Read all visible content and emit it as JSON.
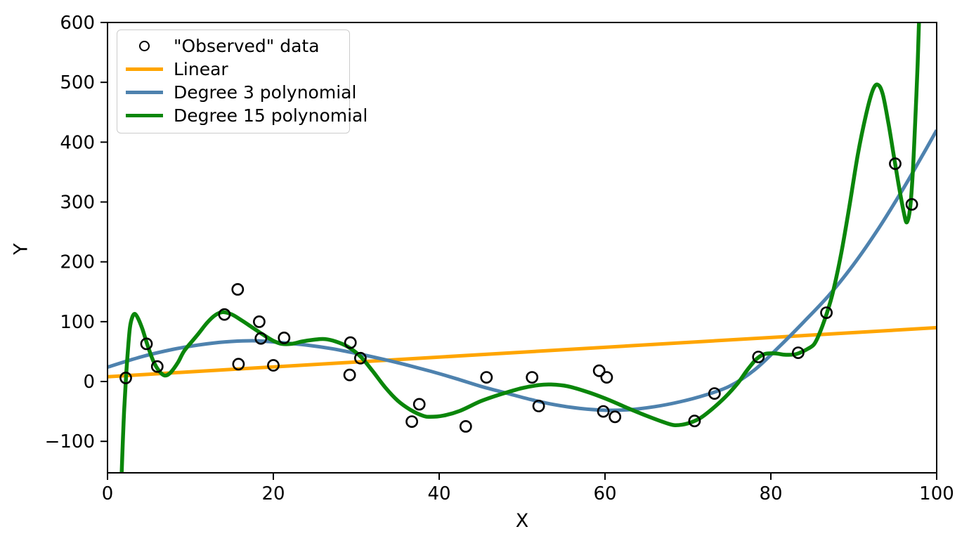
{
  "chart_data": {
    "type": "scatter+line",
    "title": "",
    "xlabel": "X",
    "ylabel": "Y",
    "xlim": [
      0,
      100
    ],
    "ylim": [
      -152.6,
      600
    ],
    "grid": false,
    "background": "#ffffff",
    "xticks": {
      "values": [
        0,
        20,
        40,
        60,
        80,
        100
      ],
      "labels": [
        "0",
        "20",
        "40",
        "60",
        "80",
        "100"
      ]
    },
    "yticks": {
      "values": [
        -100,
        0,
        100,
        200,
        300,
        400,
        500,
        600
      ],
      "labels": [
        "−100",
        "0",
        "100",
        "200",
        "300",
        "400",
        "500",
        "600"
      ]
    },
    "scatter": {
      "name": "\"Observed\" data",
      "color": "#000000",
      "marker": "open-circle",
      "points": [
        [
          2.2,
          6
        ],
        [
          4.7,
          63
        ],
        [
          6.0,
          25
        ],
        [
          14.1,
          112
        ],
        [
          15.7,
          154
        ],
        [
          15.8,
          29
        ],
        [
          18.3,
          100
        ],
        [
          18.5,
          72
        ],
        [
          20.0,
          27
        ],
        [
          21.3,
          73
        ],
        [
          29.2,
          11
        ],
        [
          29.3,
          65
        ],
        [
          30.5,
          39
        ],
        [
          36.7,
          -67
        ],
        [
          37.6,
          -38
        ],
        [
          43.2,
          -75
        ],
        [
          45.7,
          7
        ],
        [
          51.2,
          7
        ],
        [
          52.0,
          -41
        ],
        [
          59.3,
          18
        ],
        [
          59.8,
          -50
        ],
        [
          60.2,
          7
        ],
        [
          61.2,
          -59
        ],
        [
          70.8,
          -66
        ],
        [
          73.2,
          -20
        ],
        [
          78.5,
          41
        ],
        [
          83.3,
          48
        ],
        [
          86.7,
          115
        ],
        [
          95.0,
          364
        ],
        [
          97.0,
          296
        ]
      ]
    },
    "series": [
      {
        "name": "Linear",
        "color": "#FFA500",
        "points": [
          [
            0,
            8
          ],
          [
            100,
            90
          ]
        ]
      },
      {
        "name": "Degree 3 polynomial",
        "color": "#4E82AE",
        "points": [
          [
            0,
            24
          ],
          [
            4,
            41
          ],
          [
            8,
            54
          ],
          [
            12,
            63
          ],
          [
            15,
            67
          ],
          [
            18,
            68
          ],
          [
            21,
            65
          ],
          [
            24,
            61
          ],
          [
            27,
            55
          ],
          [
            30,
            47
          ],
          [
            33,
            38
          ],
          [
            36,
            28
          ],
          [
            39,
            17
          ],
          [
            42,
            5
          ],
          [
            45,
            -8
          ],
          [
            48,
            -19
          ],
          [
            51,
            -30
          ],
          [
            54,
            -39
          ],
          [
            57,
            -45
          ],
          [
            60,
            -48
          ],
          [
            63,
            -47
          ],
          [
            66,
            -42
          ],
          [
            69,
            -34
          ],
          [
            72,
            -23
          ],
          [
            75,
            -8
          ],
          [
            78,
            19
          ],
          [
            81,
            58
          ],
          [
            84,
            100
          ],
          [
            87,
            144
          ],
          [
            90,
            196
          ],
          [
            93,
            256
          ],
          [
            96,
            323
          ],
          [
            98,
            371
          ],
          [
            100,
            420
          ]
        ]
      },
      {
        "name": "Degree 15 polynomial",
        "color": "#0A860A",
        "points": [
          [
            1.7,
            -155
          ],
          [
            1.85,
            -100
          ],
          [
            2.0,
            -50
          ],
          [
            2.2,
            0
          ],
          [
            2.45,
            50
          ],
          [
            2.7,
            90
          ],
          [
            3.0,
            108
          ],
          [
            3.3,
            113
          ],
          [
            3.7,
            105
          ],
          [
            4.2,
            88
          ],
          [
            4.8,
            62
          ],
          [
            5.5,
            35
          ],
          [
            6.2,
            18
          ],
          [
            6.9,
            10
          ],
          [
            7.6,
            15
          ],
          [
            8.5,
            32
          ],
          [
            9.3,
            52
          ],
          [
            10.8,
            77
          ],
          [
            12.0,
            98
          ],
          [
            13.0,
            111
          ],
          [
            13.9,
            116
          ],
          [
            15.0,
            112
          ],
          [
            16.2,
            102
          ],
          [
            17.5,
            90
          ],
          [
            18.8,
            78
          ],
          [
            20.0,
            68
          ],
          [
            21.0,
            63
          ],
          [
            22.2,
            63
          ],
          [
            23.5,
            67
          ],
          [
            25.0,
            70
          ],
          [
            26.2,
            71
          ],
          [
            27.5,
            67
          ],
          [
            29.0,
            58
          ],
          [
            30.5,
            42
          ],
          [
            32.0,
            17
          ],
          [
            33.5,
            -10
          ],
          [
            35.0,
            -32
          ],
          [
            36.5,
            -47
          ],
          [
            38.0,
            -57
          ],
          [
            38.9,
            -59
          ],
          [
            40.5,
            -57
          ],
          [
            42.5,
            -49
          ],
          [
            45.0,
            -33
          ],
          [
            47.5,
            -21
          ],
          [
            50.0,
            -11
          ],
          [
            52.0,
            -6
          ],
          [
            53.5,
            -5
          ],
          [
            55.5,
            -8
          ],
          [
            58.0,
            -18
          ],
          [
            60.5,
            -31
          ],
          [
            63.0,
            -46
          ],
          [
            65.5,
            -60
          ],
          [
            67.5,
            -70
          ],
          [
            68.5,
            -73
          ],
          [
            70.0,
            -70
          ],
          [
            71.5,
            -61
          ],
          [
            73.0,
            -45
          ],
          [
            74.5,
            -26
          ],
          [
            76.0,
            -3
          ],
          [
            77.2,
            20
          ],
          [
            78.3,
            38
          ],
          [
            79.3,
            46
          ],
          [
            80.5,
            47
          ],
          [
            81.5,
            45
          ],
          [
            82.7,
            45
          ],
          [
            83.5,
            48
          ],
          [
            84.5,
            55
          ],
          [
            85.2,
            62
          ],
          [
            85.8,
            78
          ],
          [
            86.7,
            112
          ],
          [
            87.5,
            150
          ],
          [
            88.5,
            215
          ],
          [
            89.5,
            295
          ],
          [
            90.5,
            380
          ],
          [
            91.5,
            447
          ],
          [
            92.3,
            487
          ],
          [
            92.9,
            496
          ],
          [
            93.5,
            480
          ],
          [
            94.2,
            430
          ],
          [
            94.8,
            380
          ],
          [
            95.4,
            330
          ],
          [
            96.0,
            285
          ],
          [
            96.4,
            266
          ],
          [
            96.8,
            290
          ],
          [
            97.1,
            345
          ],
          [
            97.4,
            430
          ],
          [
            97.7,
            530
          ],
          [
            97.9,
            615
          ]
        ]
      }
    ],
    "legend": {
      "position": "upper left",
      "entries": [
        {
          "swatch": "open-circle",
          "color": "#000000",
          "label": "\"Observed\" data"
        },
        {
          "swatch": "line",
          "color": "#FFA500",
          "label": "Linear"
        },
        {
          "swatch": "line",
          "color": "#4E82AE",
          "label": "Degree 3 polynomial"
        },
        {
          "swatch": "line",
          "color": "#0A860A",
          "label": "Degree 15 polynomial"
        }
      ]
    }
  }
}
